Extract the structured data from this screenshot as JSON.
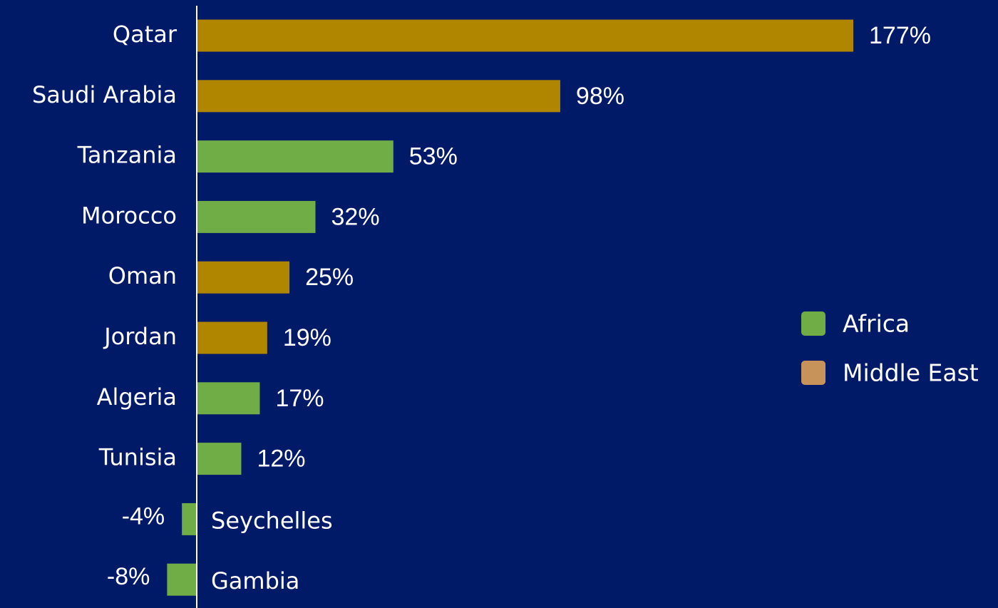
{
  "chart_data": {
    "type": "barh",
    "categories": [
      "Qatar",
      "Saudi Arabia",
      "Tanzania",
      "Morocco",
      "Oman",
      "Jordan",
      "Algeria",
      "Tunisia",
      "Seychelles",
      "Gambia"
    ],
    "series": [
      {
        "name": "Africa",
        "color": "#70ad47",
        "legend_color": "#70ad47",
        "values": [
          null,
          null,
          53,
          32,
          null,
          null,
          17,
          12,
          -4,
          -8
        ],
        "value_labels": [
          null,
          null,
          "53%",
          "32%",
          null,
          null,
          "17%",
          "12%",
          "-4%",
          "-8%"
        ]
      },
      {
        "name": "Middle East",
        "color": "#b08600",
        "legend_color": "#c8935a",
        "values": [
          177,
          98,
          null,
          null,
          25,
          19,
          null,
          null,
          null,
          null
        ],
        "value_labels": [
          "177%",
          "98%",
          null,
          null,
          "25%",
          "19%",
          null,
          null,
          null,
          null
        ]
      }
    ],
    "legend": "right"
  }
}
